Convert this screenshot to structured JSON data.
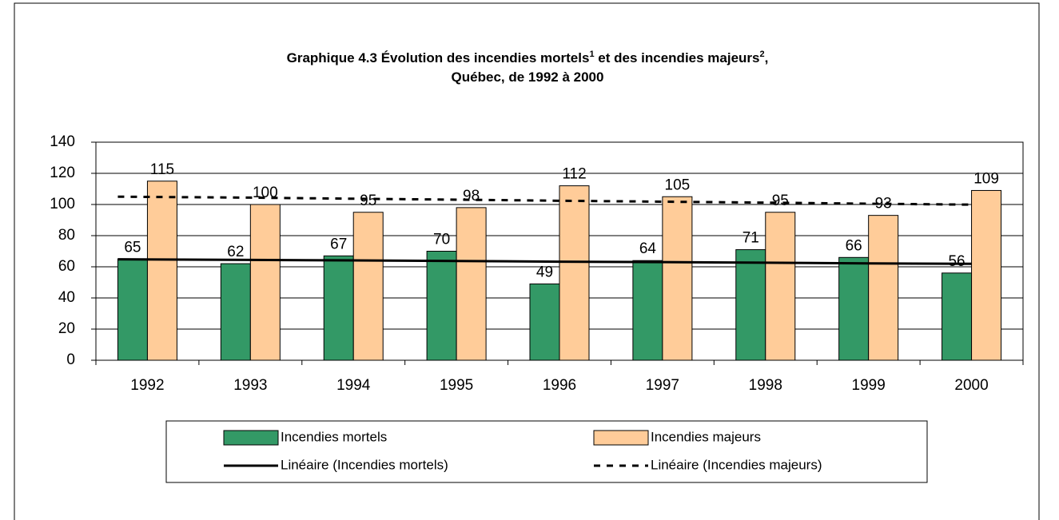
{
  "chart_data": {
    "type": "bar",
    "title": [
      [
        {
          "text": "Graphique 4.3 Évolution des incendies mortels"
        },
        {
          "text": "1",
          "sup": true
        },
        {
          "text": " et des incendies majeurs"
        },
        {
          "text": "2",
          "sup": true
        },
        {
          "text": ","
        }
      ],
      [
        {
          "text": "Québec, de 1992 à 2000"
        }
      ]
    ],
    "categories": [
      "1992",
      "1993",
      "1994",
      "1995",
      "1996",
      "1997",
      "1998",
      "1999",
      "2000"
    ],
    "series": [
      {
        "name": "Incendies mortels",
        "type": "bar",
        "color": "#339966",
        "values": [
          65,
          62,
          67,
          70,
          49,
          64,
          71,
          66,
          56
        ]
      },
      {
        "name": "Incendies majeurs",
        "type": "bar",
        "color": "#ffcc99",
        "values": [
          115,
          100,
          95,
          98,
          112,
          105,
          95,
          93,
          109
        ]
      },
      {
        "name": "Linéaire (Incendies mortels)",
        "type": "line",
        "color": "#000000",
        "dash": false,
        "values": [
          64.8,
          64.4,
          64.1,
          63.7,
          63.3,
          63.0,
          62.6,
          62.2,
          61.9
        ]
      },
      {
        "name": "Linéaire (Incendies majeurs)",
        "type": "line",
        "color": "#000000",
        "dash": true,
        "values": [
          105.0,
          104.4,
          103.7,
          103.1,
          102.4,
          101.8,
          101.2,
          100.5,
          99.9
        ]
      }
    ],
    "ylim": [
      0,
      140
    ],
    "yticks": [
      0,
      20,
      40,
      60,
      80,
      100,
      120,
      140
    ],
    "grid": true
  }
}
